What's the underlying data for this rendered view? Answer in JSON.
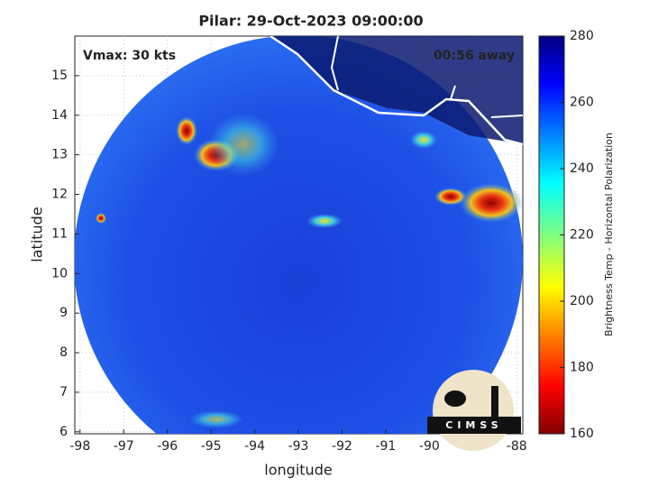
{
  "chart_data": {
    "type": "swath-map",
    "title": "Pilar: 29-Oct-2023 09:00:00",
    "xlabel": "longitude",
    "ylabel": "latitude",
    "xlim": [
      -98.12,
      -87.86
    ],
    "xticks": [
      -98,
      -97,
      -96,
      -95,
      -94,
      -93,
      -92,
      -91,
      -90,
      -89,
      -88
    ],
    "ylim": [
      5.95,
      16.0
    ],
    "yticks": [
      6,
      7,
      8,
      9,
      10,
      11,
      12,
      13,
      14,
      15
    ],
    "grid": true,
    "annotations": {
      "vmax": "Vmax: 30 kts",
      "time_away": "00:56 away",
      "logo": "CIMSS"
    },
    "colorbar": {
      "label": "Brightness Temp - Horizontal Polarization",
      "lim": [
        160,
        280
      ],
      "ticks": [
        160,
        180,
        200,
        220,
        240,
        260,
        280
      ]
    }
  }
}
